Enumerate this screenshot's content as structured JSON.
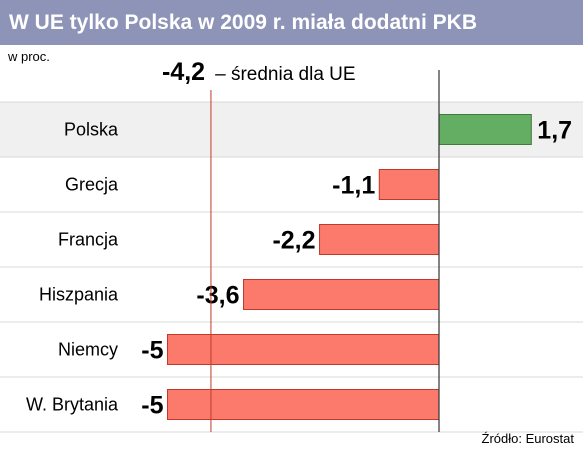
{
  "header": {
    "title": "W UE tylko Polska w 2009 r. miała dodatni PKB"
  },
  "unit_label": "w proc.",
  "average": {
    "value_label": "-4,2",
    "label": "– średnia dla UE",
    "value": -4.2
  },
  "source": "Źródło: Eurostat",
  "colors": {
    "positive": "#64ae64",
    "negative": "#fb7a6c",
    "highlight_row": "#f0f0f0",
    "average_line": "#c0392b",
    "title_bar": "#8e94b8"
  },
  "chart_data": {
    "type": "bar",
    "orientation": "horizontal",
    "title": "W UE tylko Polska w 2009 r. miała dodatni PKB",
    "categories": [
      "Polska",
      "Grecja",
      "Francja",
      "Hiszpania",
      "Niemcy",
      "W. Brytania"
    ],
    "values": [
      1.7,
      -1.1,
      -2.2,
      -3.6,
      -5,
      -5
    ],
    "value_labels": [
      "1,7",
      "-1,1",
      "-2,2",
      "-3,6",
      "-5",
      "-5"
    ],
    "xlim": [
      -5,
      1.7
    ],
    "reference_line": {
      "value": -4.2,
      "label": "– średnia dla UE"
    },
    "highlight_category": "Polska",
    "grid": false
  }
}
